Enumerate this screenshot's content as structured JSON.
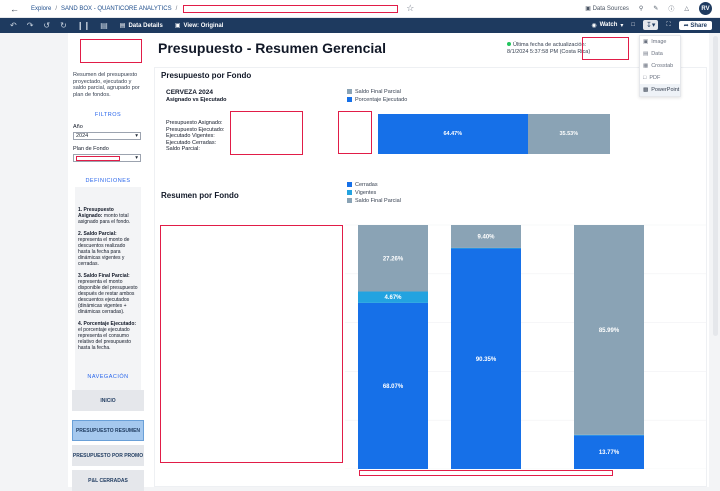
{
  "topbar": {
    "crumbs": [
      "Explore",
      "SAND BOX - QUANTICORE ANALYTICS"
    ],
    "data_sources": "Data Sources",
    "avatar": "RV"
  },
  "toolbar": {
    "data_details": "Data Details",
    "view_original": "View: Original",
    "watch": "Watch",
    "share": "Share"
  },
  "download_menu": [
    "Image",
    "Data",
    "Crosstab",
    "PDF",
    "PowerPoint"
  ],
  "header": {
    "title": "Presupuesto - Resumen Gerencial",
    "update_line1": "Última fecha de actualización:",
    "update_line2": "8/1/2024 5:37:58 PM (Costa Rica)"
  },
  "sidebar": {
    "description": "Resumen del presupuesto proyectado, ejecutado y saldo parcial, agrupado por plan de fondos.",
    "filters_head": "FILTROS",
    "year_label": "Año",
    "year_value": "2024",
    "plan_label": "Plan de Fondo",
    "definitions_head": "DEFINICIONES",
    "definitions": [
      {
        "term": "1. Presupuesto Asignado:",
        "text": " monto total asignado para el fondo."
      },
      {
        "term": "2. Saldo Parcial:",
        "text": " representa el monto de descuentos realizado hasta la fecha para dinámicas vigentes y cerradas."
      },
      {
        "term": "3. Saldo Final Parcial:",
        "text": " representa el monto disponible del presupuesto después de restar ambos descuentos ejecutados (dinámicas vigentes + dinámicas cerradas)."
      },
      {
        "term": "4. Porcentaje Ejecutado:",
        "text": " el porcentaje ejecutado representa el consumo relativo del presupuesto hasta la fecha."
      }
    ],
    "nav_head": "NAVEGACIÓN",
    "nav": [
      "INICIO",
      "PRESUPUESTO RESUMEN",
      "PRESUPUESTO POR PROMO",
      "P&L CERRADAS"
    ]
  },
  "fund_section": {
    "title": "Presupuesto por Fondo",
    "fund_name": "CERVEZA 2024",
    "fund_sub": "Asignado vs Ejecutado",
    "labels": [
      "Presupuesto Asignado:",
      "Presupuesto Ejecutado:",
      "Ejecutado Vigentes:",
      "Ejecutado Cerradas:",
      "Saldo Parcial:"
    ]
  },
  "summary_section": {
    "title": "Resumen por Fondo"
  },
  "colors": {
    "blue": "#1670e8",
    "grey": "#8aa3b5",
    "light_blue": "#23a3e0"
  },
  "chart_data": [
    {
      "type": "bar",
      "orientation": "horizontal-stacked",
      "legend": [
        "Saldo Final Parcial",
        "Porcentaje Ejecutado"
      ],
      "series": [
        {
          "name": "Porcentaje Ejecutado",
          "values": [
            64.47
          ],
          "label": "64.47%"
        },
        {
          "name": "Saldo Final Parcial",
          "values": [
            35.53
          ],
          "label": "35.53%"
        }
      ]
    },
    {
      "type": "bar",
      "orientation": "vertical-stacked",
      "legend": [
        "Cerradas",
        "Vigentes",
        "Saldo Final Parcial"
      ],
      "series": [
        {
          "name": "Cerradas",
          "values": [
            68.07,
            90.35,
            13.77
          ],
          "labels": [
            "68.07%",
            "90.35%",
            "13.77%"
          ]
        },
        {
          "name": "Vigentes",
          "values": [
            4.67,
            0.25,
            0.24
          ],
          "labels": [
            "4.67%",
            "",
            ""
          ]
        },
        {
          "name": "Saldo Final Parcial",
          "values": [
            27.26,
            9.4,
            85.99
          ],
          "labels": [
            "27.26%",
            "9.40%",
            "85.99%"
          ]
        }
      ]
    }
  ]
}
